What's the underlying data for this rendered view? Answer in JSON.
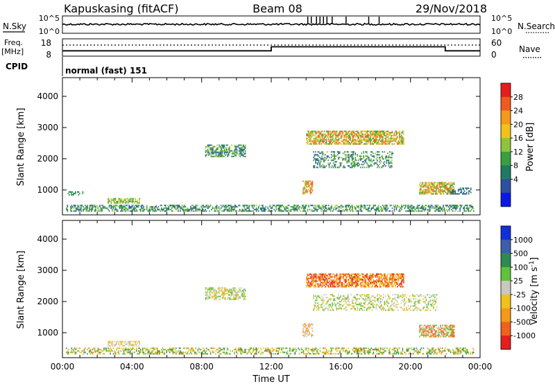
{
  "header": {
    "station": "Kapuskasing (fitACF)",
    "beam": "Beam 08",
    "date": "29/Nov/2018"
  },
  "nsky_panel": {
    "left_label": "N.Sky",
    "right_label": "N.Search",
    "ticks_left": [
      "10^5",
      "10^0"
    ],
    "ticks_right": [
      "10^5",
      "10^0"
    ],
    "spike_hours": [
      14.1,
      14.3,
      14.6,
      14.8,
      15.0,
      15.2,
      15.5,
      16.3,
      17.6,
      18.2
    ]
  },
  "freq_panel": {
    "left_label": "Freq.",
    "left_unit": "[MHz]",
    "right_label": "Nave",
    "ticks_left": [
      "18",
      "8"
    ],
    "ticks_right": [
      "60",
      "0"
    ],
    "freq_steps": [
      {
        "from": 0,
        "to": 12,
        "mhz": 10.5
      },
      {
        "from": 12,
        "to": 22,
        "mhz": 13.5
      },
      {
        "from": 22,
        "to": 24,
        "mhz": 10.5
      }
    ]
  },
  "cpid": {
    "label": "CPID",
    "mode": "normal (fast) 151"
  },
  "chart_data": [
    {
      "type": "heatmap",
      "quantity": "Power",
      "ylabel": "Slant Range [km]",
      "ylim": [
        200,
        4600
      ],
      "yticks": [
        "1000",
        "2000",
        "3000",
        "4000"
      ],
      "xlim_hours": [
        0,
        24
      ],
      "colorbar": {
        "label": "Power [dB]",
        "ticks": [
          "4",
          "8",
          "12",
          "16",
          "20",
          "24",
          "28"
        ],
        "colors": [
          "#0a18e6",
          "#2e4fa0",
          "#1f7a63",
          "#3b9f3f",
          "#8fc43a",
          "#f0c21a",
          "#f39a1a",
          "#f05a1e",
          "#e41d1d"
        ]
      },
      "regions": [
        {
          "t0": 0.2,
          "t1": 23.6,
          "r0": 300,
          "r1": 520,
          "values": [
            4,
            8,
            12,
            16
          ],
          "density": 0.55
        },
        {
          "t0": 0.3,
          "t1": 1.2,
          "r0": 820,
          "r1": 930,
          "values": [
            8,
            12
          ],
          "density": 0.4
        },
        {
          "t0": 2.6,
          "t1": 4.4,
          "r0": 560,
          "r1": 700,
          "values": [
            16,
            20,
            12
          ],
          "density": 0.65
        },
        {
          "t0": 8.2,
          "t1": 10.5,
          "r0": 2050,
          "r1": 2450,
          "values": [
            8,
            12,
            16,
            4
          ],
          "density": 0.6
        },
        {
          "t0": 13.8,
          "t1": 14.4,
          "r0": 850,
          "r1": 1300,
          "values": [
            24,
            28,
            16
          ],
          "density": 0.6
        },
        {
          "t0": 14.0,
          "t1": 19.6,
          "r0": 2450,
          "r1": 2900,
          "values": [
            16,
            20,
            24,
            28,
            12
          ],
          "density": 0.7
        },
        {
          "t0": 14.4,
          "t1": 19.0,
          "r0": 1700,
          "r1": 2200,
          "values": [
            8,
            12,
            16,
            4
          ],
          "density": 0.35
        },
        {
          "t0": 20.5,
          "t1": 22.5,
          "r0": 850,
          "r1": 1250,
          "values": [
            24,
            28,
            20,
            16,
            12
          ],
          "density": 0.75
        },
        {
          "t0": 22.3,
          "t1": 23.5,
          "r0": 850,
          "r1": 1050,
          "values": [
            4,
            8,
            12
          ],
          "density": 0.5
        }
      ]
    },
    {
      "type": "heatmap",
      "quantity": "Velocity",
      "ylabel": "Slant Range [km]",
      "ylim": [
        200,
        4600
      ],
      "yticks": [
        "1000",
        "2000",
        "3000",
        "4000"
      ],
      "xlim_hours": [
        0,
        24
      ],
      "xticks": [
        "00:00",
        "04:00",
        "08:00",
        "12:00",
        "16:00",
        "20:00",
        "00:00"
      ],
      "xlabel": "Time UT",
      "colorbar": {
        "label": "Velocity  [m s",
        "label_sup": "-1",
        "label_end": "]",
        "ticks": [
          "1000",
          "500",
          "100",
          "25",
          "-25",
          "-100",
          "-500",
          "-1000"
        ],
        "colors": [
          "#1230d8",
          "#3c5eac",
          "#2e8a52",
          "#5fc23a",
          "#c8c8c0",
          "#f0c21a",
          "#f39a1a",
          "#f0601e",
          "#e41d1d"
        ]
      },
      "regions": [
        {
          "t0": 0.2,
          "t1": 23.6,
          "r0": 300,
          "r1": 520,
          "values": [
            25,
            100,
            -100,
            -25
          ],
          "density": 0.45
        },
        {
          "t0": 2.6,
          "t1": 4.4,
          "r0": 560,
          "r1": 700,
          "values": [
            0,
            -25
          ],
          "density": 0.55
        },
        {
          "t0": 8.2,
          "t1": 10.5,
          "r0": 2050,
          "r1": 2450,
          "values": [
            0,
            -25,
            25
          ],
          "density": 0.6
        },
        {
          "t0": 13.8,
          "t1": 14.4,
          "r0": 850,
          "r1": 1300,
          "values": [
            0,
            -100
          ],
          "density": 0.5
        },
        {
          "t0": 14.0,
          "t1": 19.6,
          "r0": 2450,
          "r1": 2900,
          "values": [
            -100,
            -500,
            -1000,
            -25
          ],
          "density": 0.7
        },
        {
          "t0": 14.4,
          "t1": 21.5,
          "r0": 1700,
          "r1": 2200,
          "values": [
            0,
            -25,
            25
          ],
          "density": 0.35
        },
        {
          "t0": 20.5,
          "t1": 22.5,
          "r0": 850,
          "r1": 1250,
          "values": [
            -100,
            -500,
            0,
            25
          ],
          "density": 0.7
        }
      ]
    }
  ]
}
